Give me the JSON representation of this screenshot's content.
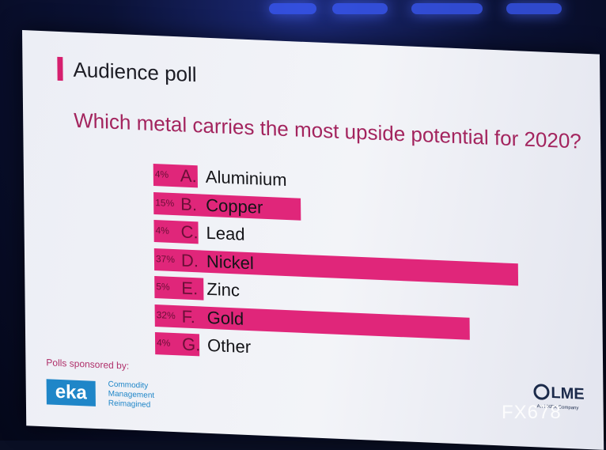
{
  "title": "Audience poll",
  "question": "Which metal carries the most upside potential for 2020?",
  "options": [
    {
      "pct": "4%",
      "value": 4,
      "letter": "A.",
      "metal": "Aluminium"
    },
    {
      "pct": "15%",
      "value": 15,
      "letter": "B.",
      "metal": "Copper"
    },
    {
      "pct": "4%",
      "value": 4,
      "letter": "C.",
      "metal": "Lead"
    },
    {
      "pct": "37%",
      "value": 37,
      "letter": "D.",
      "metal": "Nickel"
    },
    {
      "pct": "5%",
      "value": 5,
      "letter": "E.",
      "metal": "Zinc"
    },
    {
      "pct": "32%",
      "value": 32,
      "letter": "F.",
      "metal": "Gold"
    },
    {
      "pct": "4%",
      "value": 4,
      "letter": "G.",
      "metal": "Other"
    }
  ],
  "sponsor": {
    "label": "Polls sponsored by:",
    "logo": "eka",
    "tagline": [
      "Commodity",
      "Management",
      "Reimagined"
    ]
  },
  "brand": {
    "name": "LME",
    "sub": "An HKEX Company"
  },
  "watermark": "FX678",
  "colors": {
    "bar": "#e0267a",
    "accent": "#d61f6e",
    "question": "#a3245e",
    "eka": "#1f86c8"
  }
}
